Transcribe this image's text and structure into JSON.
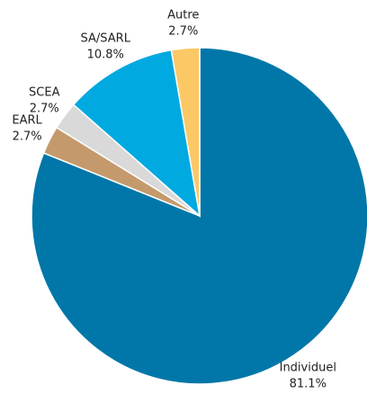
{
  "chart_data": {
    "type": "pie",
    "categories": [
      "Individuel",
      "EARL",
      "SCEA",
      "SA/SARL",
      "Autre"
    ],
    "values": [
      81.1,
      2.7,
      2.7,
      10.8,
      2.7
    ],
    "value_labels": [
      "81.1%",
      "2.7%",
      "2.7%",
      "10.8%",
      "2.7%"
    ],
    "colors": [
      "#0077a8",
      "#c49a6c",
      "#d9d9d9",
      "#00a9e0",
      "#fcc865"
    ]
  }
}
